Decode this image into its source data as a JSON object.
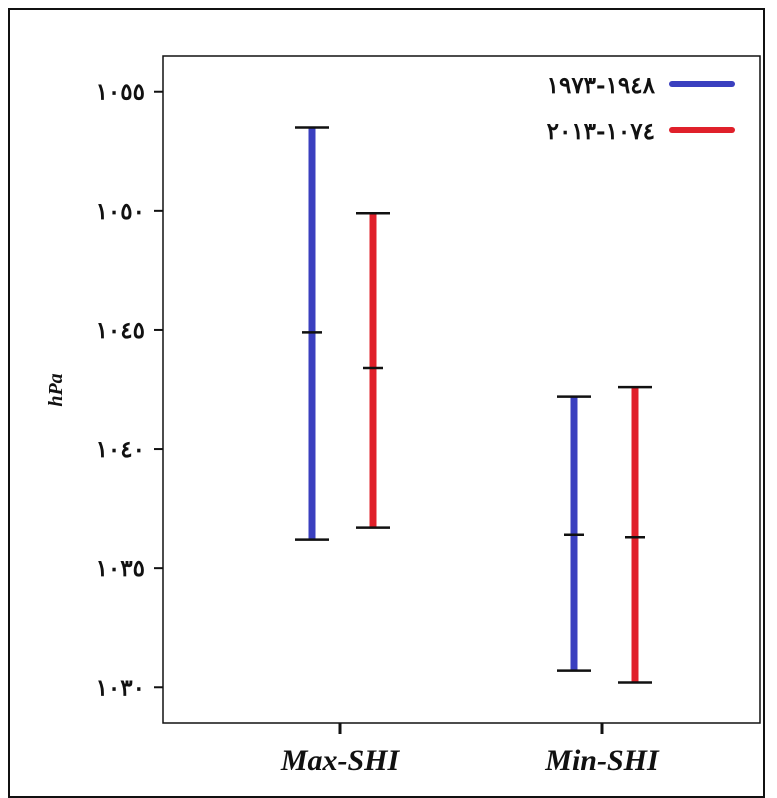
{
  "chart_data": {
    "type": "errorbar",
    "ylabel": "hPa",
    "ylim": [
      1028.5,
      1056.5
    ],
    "yticks": [
      1030,
      1035,
      1040,
      1045,
      1050,
      1055
    ],
    "ytick_labels": [
      "١٠٣٠",
      "١٠٣٥",
      "١٠٤٠",
      "١٠٤٥",
      "١٠٥٠",
      "١٠٥٥"
    ],
    "categories": [
      "Max-SHI",
      "Min-SHI"
    ],
    "series": [
      {
        "name": "١٩٤٨-١٩٧٣",
        "color": "#3a3fbf",
        "bars": [
          {
            "category": "Max-SHI",
            "low": 1036.2,
            "mid": 1044.9,
            "high": 1053.5
          },
          {
            "category": "Min-SHI",
            "low": 1030.7,
            "mid": 1036.4,
            "high": 1042.2
          }
        ]
      },
      {
        "name": "١٠٧٤-٢٠١٣",
        "color": "#e0202a",
        "bars": [
          {
            "category": "Max-SHI",
            "low": 1036.7,
            "mid": 1043.4,
            "high": 1049.9
          },
          {
            "category": "Min-SHI",
            "low": 1030.2,
            "mid": 1036.3,
            "high": 1042.6
          }
        ]
      }
    ],
    "legend_position": "top-right",
    "grid": false
  }
}
